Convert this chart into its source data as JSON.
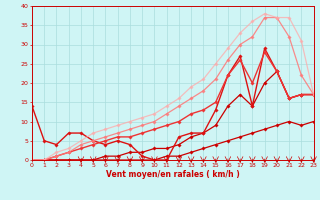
{
  "xlabel": "Vent moyen/en rafales ( km/h )",
  "xlim": [
    0,
    23
  ],
  "ylim": [
    0,
    40
  ],
  "xticks": [
    0,
    1,
    2,
    3,
    4,
    5,
    6,
    7,
    8,
    9,
    10,
    11,
    12,
    13,
    14,
    15,
    16,
    17,
    18,
    19,
    20,
    21,
    22,
    23
  ],
  "yticks": [
    0,
    5,
    10,
    15,
    20,
    25,
    30,
    35,
    40
  ],
  "bg_color": "#cff5f5",
  "grid_color": "#aadddd",
  "lines": [
    {
      "x": [
        0,
        1,
        2,
        3,
        4,
        5,
        6,
        7,
        8,
        9,
        10,
        11,
        12,
        13,
        14,
        15,
        16,
        17,
        18,
        19,
        20,
        21,
        22,
        23
      ],
      "y": [
        0,
        0,
        0,
        0,
        0,
        0,
        0,
        0,
        0,
        0,
        0,
        1,
        1,
        2,
        3,
        4,
        5,
        6,
        7,
        8,
        9,
        10,
        9,
        10
      ],
      "color": "#cc0000",
      "linewidth": 0.9,
      "marker": "D",
      "markersize": 1.8,
      "alpha": 1.0
    },
    {
      "x": [
        0,
        1,
        2,
        3,
        4,
        5,
        6,
        7,
        8,
        9,
        10,
        11,
        12,
        13,
        14,
        15,
        16,
        17,
        18,
        19,
        20,
        21,
        22,
        23
      ],
      "y": [
        0,
        0,
        0,
        0,
        0,
        0,
        1,
        1,
        2,
        2,
        3,
        3,
        4,
        6,
        7,
        9,
        14,
        17,
        14,
        20,
        23,
        16,
        17,
        17
      ],
      "color": "#cc0000",
      "linewidth": 0.9,
      "marker": "D",
      "markersize": 1.8,
      "alpha": 1.0
    },
    {
      "x": [
        0,
        1,
        2,
        3,
        4,
        5,
        6,
        7,
        8,
        9,
        10,
        11,
        12,
        13,
        14,
        15,
        16,
        17,
        18,
        19,
        20,
        21,
        22,
        23
      ],
      "y": [
        14,
        5,
        4,
        7,
        7,
        5,
        4,
        5,
        4,
        1,
        0,
        0,
        6,
        7,
        7,
        13,
        22,
        27,
        14,
        29,
        23,
        16,
        17,
        17
      ],
      "color": "#dd1111",
      "linewidth": 1.0,
      "marker": "D",
      "markersize": 1.8,
      "alpha": 1.0
    },
    {
      "x": [
        0,
        1,
        2,
        3,
        4,
        5,
        6,
        7,
        8,
        9,
        10,
        11,
        12,
        13,
        14,
        15,
        16,
        17,
        18,
        19,
        20,
        21,
        22,
        23
      ],
      "y": [
        0,
        0,
        1,
        2,
        3,
        4,
        5,
        6,
        6,
        7,
        8,
        9,
        10,
        12,
        13,
        15,
        22,
        26,
        20,
        28,
        23,
        16,
        17,
        17
      ],
      "color": "#ee3333",
      "linewidth": 1.0,
      "marker": "D",
      "markersize": 1.8,
      "alpha": 1.0
    },
    {
      "x": [
        0,
        1,
        2,
        3,
        4,
        5,
        6,
        7,
        8,
        9,
        10,
        11,
        12,
        13,
        14,
        15,
        16,
        17,
        18,
        19,
        20,
        21,
        22,
        23
      ],
      "y": [
        0,
        0,
        1,
        2,
        4,
        5,
        6,
        7,
        8,
        9,
        10,
        12,
        14,
        16,
        18,
        21,
        26,
        30,
        32,
        37,
        37,
        32,
        22,
        17
      ],
      "color": "#ff7777",
      "linewidth": 0.9,
      "marker": "D",
      "markersize": 1.8,
      "alpha": 0.85
    },
    {
      "x": [
        0,
        1,
        2,
        3,
        4,
        5,
        6,
        7,
        8,
        9,
        10,
        11,
        12,
        13,
        14,
        15,
        16,
        17,
        18,
        19,
        20,
        21,
        22,
        23
      ],
      "y": [
        0,
        0,
        2,
        3,
        5,
        7,
        8,
        9,
        10,
        11,
        12,
        14,
        16,
        19,
        21,
        25,
        29,
        33,
        36,
        38,
        37,
        37,
        31,
        17
      ],
      "color": "#ffaaaa",
      "linewidth": 0.9,
      "marker": "D",
      "markersize": 1.8,
      "alpha": 0.75
    }
  ],
  "wind_arrows_x": [
    4,
    5,
    6,
    7,
    8,
    9,
    10,
    11,
    12,
    13,
    14,
    15,
    16,
    17,
    18,
    19,
    20,
    21,
    22,
    23
  ],
  "label_color": "#cc0000",
  "xlabel_color": "#cc0000",
  "tick_color": "#cc0000",
  "axis_color": "#cc0000"
}
